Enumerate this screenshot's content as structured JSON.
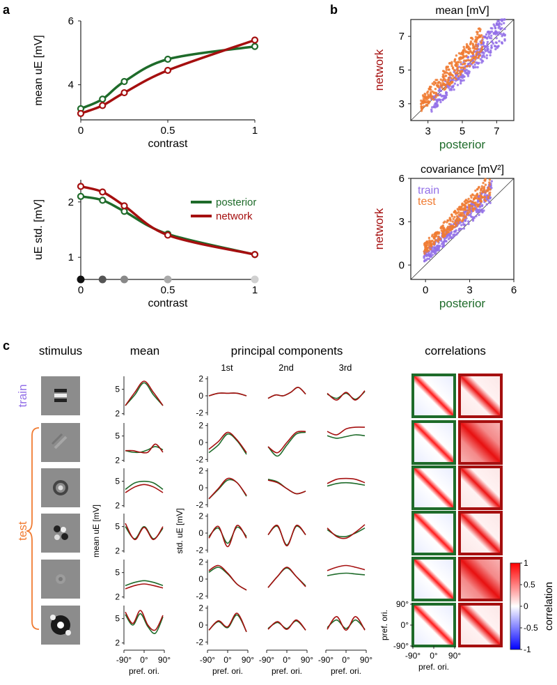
{
  "panels": {
    "a": "a",
    "b": "b",
    "c": "c"
  },
  "colors": {
    "posterior": "#1e6b2a",
    "network": "#a50f0f",
    "train": "#9370e8",
    "test": "#f07b32",
    "axis": "#222222"
  },
  "chart_data": [
    {
      "id": "a-mean",
      "type": "line",
      "title": "",
      "xlabel": "contrast",
      "ylabel": "mean uE [mV]",
      "xlim": [
        0,
        1
      ],
      "ylim": [
        2.9,
        6
      ],
      "xticks": [
        "0",
        "0.5",
        "1"
      ],
      "yticks": [
        "4",
        "6"
      ],
      "x": [
        0,
        0.125,
        0.25,
        0.5,
        1
      ],
      "series": [
        {
          "name": "posterior",
          "values": [
            3.25,
            3.55,
            4.1,
            4.8,
            5.2
          ]
        },
        {
          "name": "network",
          "values": [
            3.1,
            3.35,
            3.75,
            4.45,
            5.4
          ]
        }
      ]
    },
    {
      "id": "a-std",
      "type": "line",
      "xlabel": "contrast",
      "ylabel": "uE std. [mV]",
      "xlim": [
        0,
        1
      ],
      "ylim": [
        0.6,
        2.4
      ],
      "xticks": [
        "0",
        "0.5",
        "1"
      ],
      "yticks": [
        "1",
        "2"
      ],
      "x": [
        0,
        0.125,
        0.25,
        0.5,
        1
      ],
      "series": [
        {
          "name": "posterior",
          "values": [
            2.1,
            2.03,
            1.83,
            1.42,
            1.05
          ]
        },
        {
          "name": "network",
          "values": [
            2.28,
            2.18,
            1.93,
            1.4,
            1.05
          ]
        }
      ],
      "legend": [
        "posterior",
        "network"
      ],
      "contrast_markers": {
        "x": [
          0,
          0.125,
          0.25,
          0.5,
          1
        ],
        "shades": [
          "#111111",
          "#555555",
          "#888888",
          "#aaaaaa",
          "#d0d0d0"
        ]
      }
    },
    {
      "id": "b-mean",
      "type": "scatter",
      "title": "mean [mV]",
      "xlabel": "posterior",
      "ylabel": "network",
      "xlim": [
        2,
        8
      ],
      "ylim": [
        2,
        8
      ],
      "xticks": [
        "3",
        "5",
        "7"
      ],
      "yticks": [
        "3",
        "5",
        "7"
      ],
      "series": [
        {
          "name": "train",
          "x_range": [
            3.2,
            7.5
          ],
          "offset": -0.25
        },
        {
          "name": "test",
          "x_range": [
            2.6,
            6.2
          ],
          "offset": 0.4
        }
      ]
    },
    {
      "id": "b-cov",
      "type": "scatter",
      "title": "covariance [mV²]",
      "xlabel": "posterior",
      "ylabel": "network",
      "xlim": [
        -1,
        6
      ],
      "ylim": [
        -1,
        6
      ],
      "xticks": [
        "0",
        "3",
        "6"
      ],
      "yticks": [
        "0",
        "3",
        "6"
      ],
      "legend": [
        "train",
        "test"
      ],
      "series": [
        {
          "name": "train",
          "x_range": [
            -0.1,
            4.5
          ],
          "offset": 0.6
        },
        {
          "name": "test",
          "x_range": [
            -0.1,
            4.4
          ],
          "offset": 1.2
        }
      ]
    },
    {
      "id": "c-grid",
      "type": "line",
      "columns": {
        "stimulus": "stimulus",
        "mean": "mean",
        "pcs": "principal components",
        "corr": "correlations"
      },
      "pc_labels": [
        "1st",
        "2nd",
        "3rd"
      ],
      "row_labels": {
        "train": "train",
        "test": "test"
      },
      "mean_ylabel": "mean uE [mV]",
      "std_ylabel": "std. uE [mV]",
      "mean_yticks": [
        "5",
        "2"
      ],
      "pc_yticks": [
        "2",
        "0",
        "-2"
      ],
      "x_ticks": [
        "-90°",
        "0°",
        "90°"
      ],
      "xlabel": "pref. ori.",
      "corr_yticks": [
        "90°",
        "0°",
        "-90°"
      ],
      "colorbar": {
        "label": "correlation",
        "ticks": [
          "1",
          "0.5",
          "0",
          "-0.5",
          "-1"
        ],
        "range": [
          -1,
          1
        ]
      },
      "rows": [
        {
          "mean": {
            "posterior": [
              3.0,
              4.3,
              5.8,
              4.3,
              3.0
            ],
            "network": [
              3.0,
              4.6,
              6.0,
              4.6,
              3.0
            ]
          },
          "pc": [
            {
              "posterior": [
                0,
                0.3,
                0.3,
                0.3,
                0
              ],
              "network": [
                0,
                0.3,
                0.3,
                0.3,
                0
              ]
            },
            {
              "posterior": [
                -0.3,
                0.1,
                0,
                0.4,
                1.0,
                0.2
              ],
              "network": [
                -0.3,
                0.1,
                0,
                0.4,
                1.0,
                0.2
              ]
            },
            {
              "posterior": [
                0.2,
                -0.3,
                0.3,
                -0.4,
                0.5
              ],
              "network": [
                0.3,
                -0.5,
                0.4,
                -0.5,
                0.6
              ]
            }
          ]
        },
        {
          "mean": {
            "posterior": [
              3.2,
              3.0,
              3.0,
              3.3,
              3.7,
              3.3
            ],
            "network": [
              3.2,
              3.2,
              3.0,
              3.0,
              4.0,
              3.0
            ]
          },
          "pc": [
            {
              "posterior": [
                -1.2,
                -0.3,
                1.0,
                0.2,
                -1.4
              ],
              "network": [
                -0.8,
                0.1,
                1.2,
                0.3,
                -1.2
              ]
            },
            {
              "posterior": [
                -0.5,
                -1.6,
                -0.3,
                1.0,
                1.2
              ],
              "network": [
                -0.5,
                -1.2,
                0,
                1.2,
                1.3
              ]
            },
            {
              "posterior": [
                0.8,
                0.5,
                0.7,
                0.9,
                0.8
              ],
              "network": [
                1.3,
                0.9,
                1.6,
                1.8,
                1.8
              ]
            }
          ]
        },
        {
          "mean": {
            "posterior": [
              4.0,
              4.8,
              5.0,
              4.8,
              4.0
            ],
            "network": [
              3.6,
              4.3,
              4.6,
              4.3,
              3.6
            ]
          },
          "pc": [
            {
              "posterior": [
                -1.3,
                -0.2,
                0.9,
                0.6,
                -1.0
              ],
              "network": [
                -1.3,
                -0.1,
                1.1,
                0.6,
                -0.9
              ]
            },
            {
              "posterior": [
                1.0,
                0.7,
                -0.1,
                -0.7,
                -0.4
              ],
              "network": [
                0.9,
                0.6,
                -0.1,
                -0.7,
                -0.4
              ]
            },
            {
              "posterior": [
                0.2,
                0.5,
                0.6,
                0.5,
                0.3
              ],
              "network": [
                0.5,
                1.0,
                1.1,
                1.0,
                0.6
              ]
            }
          ]
        },
        {
          "mean": {
            "posterior": [
              5.0,
              3.5,
              5.0,
              3.5,
              4.8
            ],
            "network": [
              5.4,
              3.4,
              4.9,
              3.4,
              5.0
            ]
          },
          "pc": [
            {
              "posterior": [
                -0.4,
                0.6,
                -1.2,
                0.7,
                -0.4
              ],
              "network": [
                -0.6,
                0.8,
                -1.6,
                0.9,
                -0.6
              ]
            },
            {
              "posterior": [
                -0.2,
                0.8,
                -1.4,
                0.8,
                -0.2
              ],
              "network": [
                -0.2,
                0.9,
                -1.5,
                0.9,
                -0.2
              ]
            },
            {
              "posterior": [
                0.4,
                -0.3,
                -0.4,
                0.0,
                0.6
              ],
              "network": [
                0.6,
                -0.4,
                -0.6,
                0.1,
                1.0
              ]
            }
          ]
        },
        {
          "mean": {
            "posterior": [
              3.4,
              3.8,
              4.0,
              3.8,
              3.4
            ],
            "network": [
              3.0,
              3.4,
              3.6,
              3.4,
              3.1
            ]
          },
          "pc": [
            {
              "posterior": [
                0.8,
                1.4,
                0.6,
                -0.6,
                -1.3
              ],
              "network": [
                1.0,
                1.6,
                0.7,
                -0.6,
                -1.3
              ]
            },
            {
              "posterior": [
                -1.0,
                0.3,
                1.3,
                0.3,
                -0.8
              ],
              "network": [
                -1.0,
                0.3,
                1.4,
                0.3,
                -0.9
              ]
            },
            {
              "posterior": [
                0.4,
                0.6,
                0.7,
                0.6,
                0.5
              ],
              "network": [
                1.0,
                1.4,
                1.6,
                1.4,
                1.1
              ]
            }
          ]
        },
        {
          "mean": {
            "posterior": [
              5.5,
              4.2,
              5.6,
              4.0,
              3.2,
              5.2
            ],
            "network": [
              5.8,
              4.4,
              6.0,
              4.2,
              3.6,
              5.4
            ]
          },
          "pc": [
            {
              "posterior": [
                -0.6,
                0.4,
                -0.3,
                1.2,
                -0.8
              ],
              "network": [
                -0.6,
                0.5,
                -0.2,
                1.4,
                -0.8
              ]
            },
            {
              "posterior": [
                -0.4,
                0.3,
                -0.4,
                0.5,
                -0.6
              ],
              "network": [
                -0.5,
                0.4,
                -0.5,
                0.6,
                -0.6
              ]
            },
            {
              "posterior": [
                -0.3,
                0.6,
                -0.4,
                0.6,
                -0.5
              ],
              "network": [
                -0.5,
                1.0,
                -0.6,
                1.0,
                -0.6
              ]
            }
          ]
        }
      ]
    }
  ]
}
